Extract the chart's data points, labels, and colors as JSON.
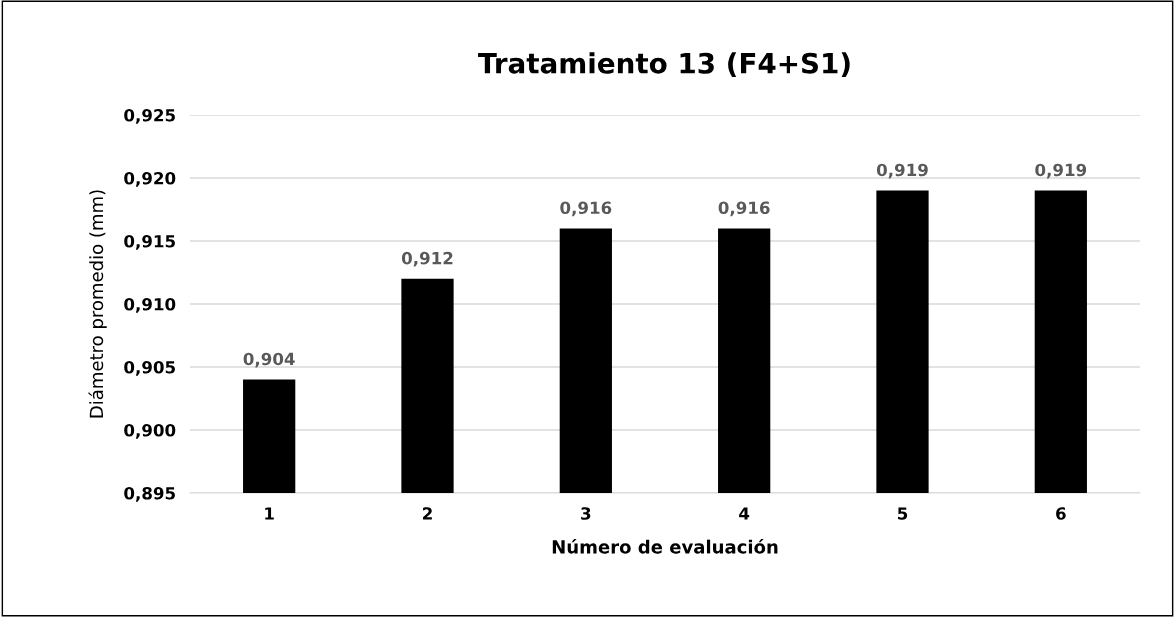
{
  "chart_data": {
    "type": "bar",
    "title": "Tratamiento 13 (F4+S1)",
    "xlabel": "Número de evaluación",
    "ylabel": "Diámetro promedio (mm)",
    "categories": [
      "1",
      "2",
      "3",
      "4",
      "5",
      "6"
    ],
    "values": [
      0.904,
      0.912,
      0.916,
      0.916,
      0.919,
      0.919
    ],
    "value_labels": [
      "0,904",
      "0,912",
      "0,916",
      "0,916",
      "0,919",
      "0,919"
    ],
    "color": "#000000",
    "ylim": [
      0.895,
      0.925
    ],
    "yticks": [
      {
        "value": 0.895,
        "label": "0,895"
      },
      {
        "value": 0.9,
        "label": "0,900"
      },
      {
        "value": 0.905,
        "label": "0,905"
      },
      {
        "value": 0.91,
        "label": "0,910"
      },
      {
        "value": 0.915,
        "label": "0,915"
      },
      {
        "value": 0.92,
        "label": "0,920"
      },
      {
        "value": 0.925,
        "label": "0,925"
      }
    ],
    "grid": "y"
  }
}
